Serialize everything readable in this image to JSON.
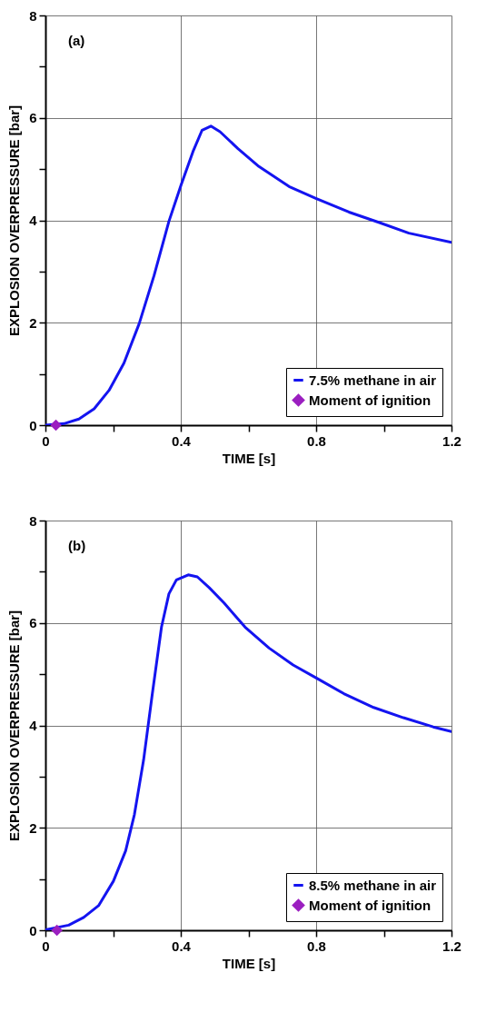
{
  "chart_data": [
    {
      "type": "line",
      "annotations": [
        "(a)"
      ],
      "xlabel": "TIME [s]",
      "ylabel": "EXPLOSION OVERPRESSURE [bar]",
      "xlim": [
        0,
        1.2
      ],
      "ylim": [
        0,
        8
      ],
      "xticks": [
        0,
        {
          "value": 0.2,
          "label": null
        },
        0.4,
        {
          "value": 0.6,
          "label": null
        },
        0.8,
        {
          "value": 1.0,
          "label": null
        },
        1.2
      ],
      "yticks": [
        0,
        {
          "value": 1,
          "label": null
        },
        2,
        {
          "value": 3,
          "label": null
        },
        4,
        {
          "value": 5,
          "label": null
        },
        6,
        {
          "value": 7,
          "label": null
        },
        8
      ],
      "grid": true,
      "legend": "bottom right",
      "series": [
        {
          "name": "7.5% methane in air",
          "color": "#1414f0",
          "line_style": "solid",
          "x": [
            0,
            0.055,
            0.099,
            0.144,
            0.188,
            0.232,
            0.277,
            0.321,
            0.365,
            0.401,
            0.436,
            0.463,
            0.489,
            0.516,
            0.569,
            0.631,
            0.72,
            0.799,
            0.897,
            0.985,
            1.074,
            1.2
          ],
          "values": [
            0,
            0.03,
            0.12,
            0.32,
            0.68,
            1.21,
            1.98,
            2.92,
            3.98,
            4.69,
            5.34,
            5.76,
            5.84,
            5.73,
            5.4,
            5.05,
            4.66,
            4.43,
            4.16,
            3.96,
            3.75,
            3.57
          ]
        },
        {
          "type": "scatter",
          "name": "Moment of ignition",
          "color": "#9b1fc0",
          "marker": "diamond",
          "x": [
            0.031
          ],
          "values": [
            0
          ]
        }
      ]
    },
    {
      "type": "line",
      "annotations": [
        "(b)"
      ],
      "xlabel": "TIME [s]",
      "ylabel": "EXPLOSION OVERPRESSURE [bar]",
      "xlim": [
        0,
        1.2
      ],
      "ylim": [
        0,
        8
      ],
      "xticks": [
        0,
        {
          "value": 0.2,
          "label": null
        },
        0.4,
        {
          "value": 0.6,
          "label": null
        },
        0.8,
        {
          "value": 1.0,
          "label": null
        },
        1.2
      ],
      "yticks": [
        0,
        {
          "value": 1,
          "label": null
        },
        2,
        {
          "value": 3,
          "label": null
        },
        4,
        {
          "value": 5,
          "label": null
        },
        6,
        {
          "value": 7,
          "label": null
        },
        8
      ],
      "grid": true,
      "legend": "bottom right",
      "series": [
        {
          "name": "8.5% methane in air",
          "color": "#1414f0",
          "line_style": "solid",
          "x": [
            0,
            0.069,
            0.113,
            0.157,
            0.201,
            0.237,
            0.263,
            0.29,
            0.316,
            0.343,
            0.365,
            0.387,
            0.422,
            0.449,
            0.484,
            0.528,
            0.59,
            0.661,
            0.732,
            0.802,
            0.882,
            0.97,
            1.058,
            1.146,
            1.2
          ],
          "values": [
            0.01,
            0.1,
            0.25,
            0.48,
            0.96,
            1.55,
            2.26,
            3.32,
            4.62,
            5.92,
            6.57,
            6.84,
            6.94,
            6.9,
            6.69,
            6.39,
            5.92,
            5.51,
            5.18,
            4.92,
            4.62,
            4.35,
            4.15,
            3.97,
            3.88
          ]
        },
        {
          "type": "scatter",
          "name": "Moment of ignition",
          "color": "#9b1fc0",
          "marker": "diamond",
          "x": [
            0.034
          ],
          "values": [
            0
          ]
        }
      ]
    }
  ]
}
